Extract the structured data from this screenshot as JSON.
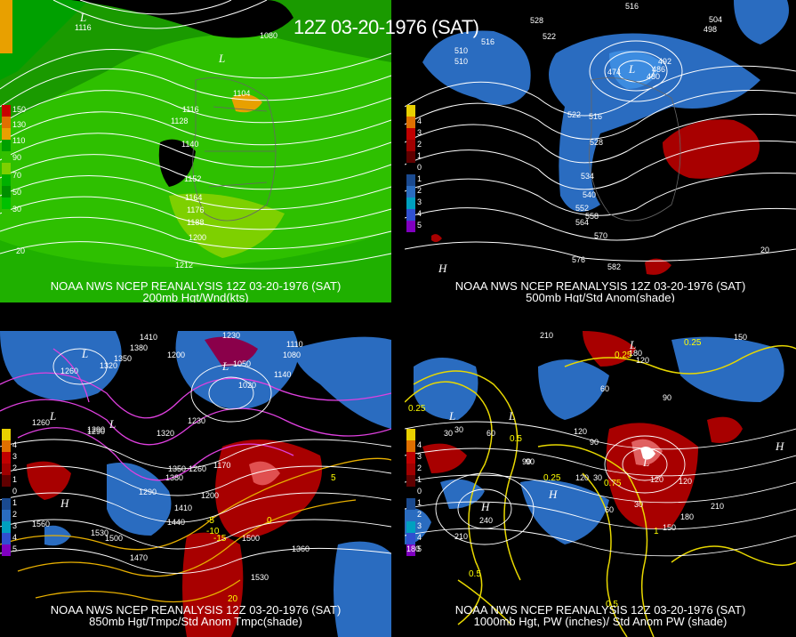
{
  "banner": "12Z 03-20-1976 (SAT)",
  "panels": [
    {
      "line1": "NOAA NWS NCEP REANALYSIS 12Z 03-20-1976 (SAT)",
      "line2": "200mb Hgt/Wnd(kts)",
      "scale": [
        "150",
        "130",
        "110",
        "90",
        "70",
        "50",
        "30"
      ],
      "scale_colors": [
        "#c80000",
        "#e07000",
        "#e8a000",
        "#00a000",
        "#33c000",
        "#7ed000",
        "#00b000"
      ],
      "labels": [
        "1116",
        "1080",
        "1104",
        "1116",
        "1128",
        "1140",
        "1152",
        "1164",
        "1176",
        "1188",
        "1200",
        "1212",
        "20"
      ],
      "pressure": [
        "L",
        "L"
      ]
    },
    {
      "line1": "NOAA NWS NCEP REANALYSIS 12Z 03-20-1976 (SAT)",
      "line2": "500mb Hgt/Std Anom(shade)",
      "scale": [
        "5",
        "4",
        "3",
        "2",
        "1",
        "0",
        "1",
        "2",
        "3",
        "4",
        "5"
      ],
      "labels": [
        "528",
        "522",
        "516",
        "504",
        "498",
        "492",
        "510",
        "486",
        "480",
        "474",
        "522",
        "516",
        "528",
        "534",
        "540",
        "552",
        "558",
        "564",
        "570",
        "576",
        "582",
        "516",
        "510",
        "20"
      ],
      "pressure": [
        "L",
        "H"
      ]
    },
    {
      "line1": "NOAA NWS NCEP REANALYSIS 12Z 03-20-1976 (SAT)",
      "line2": "850mb Hgt/Tmpc/Std Anom Tmpc(shade)",
      "scale": [
        "5",
        "4",
        "3",
        "2",
        "1",
        "0",
        "1",
        "2",
        "3",
        "4",
        "5"
      ],
      "labels": [
        "1410",
        "1380",
        "1230",
        "1350",
        "1320",
        "1260",
        "1290",
        "1200",
        "1050",
        "1140",
        "1110",
        "1080",
        "1020",
        "1230",
        "1320",
        "1350",
        "1260",
        "1170",
        "1380",
        "1200",
        "1290",
        "1410",
        "1440",
        "1500",
        "1530",
        "1470",
        "1560",
        "1360",
        "1530",
        "1500",
        "1290",
        "1260"
      ],
      "yellow": [
        "-5",
        "-10",
        "-15",
        "20",
        "5",
        "0"
      ],
      "pressure": [
        "L",
        "L",
        "L",
        "H",
        "L"
      ]
    },
    {
      "line1": "NOAA NWS NCEP REANALYSIS 12Z 03-20-1976 (SAT)",
      "line2": "1000mb Hgt, PW (inches)/ Std Anom PW (shade)",
      "scale": [
        "5",
        "4",
        "3",
        "2",
        "1",
        "0",
        "1",
        "2",
        "3",
        "4",
        "5"
      ],
      "labels": [
        "210",
        "180",
        "120",
        "150",
        "60",
        "30",
        "90",
        "120",
        "90",
        "60",
        "90",
        "120",
        "30",
        "210",
        "180",
        "240",
        "120",
        "210",
        "120",
        "30",
        "60",
        "150",
        "180",
        "90",
        "30"
      ],
      "yellow": [
        "0.25",
        "0.25",
        "0.5",
        "0.5",
        "0.75",
        "0.25",
        "0.25",
        "0.5",
        "1"
      ],
      "pressure": [
        "L",
        "L",
        "H",
        "H",
        "H",
        "L",
        "L"
      ]
    }
  ]
}
